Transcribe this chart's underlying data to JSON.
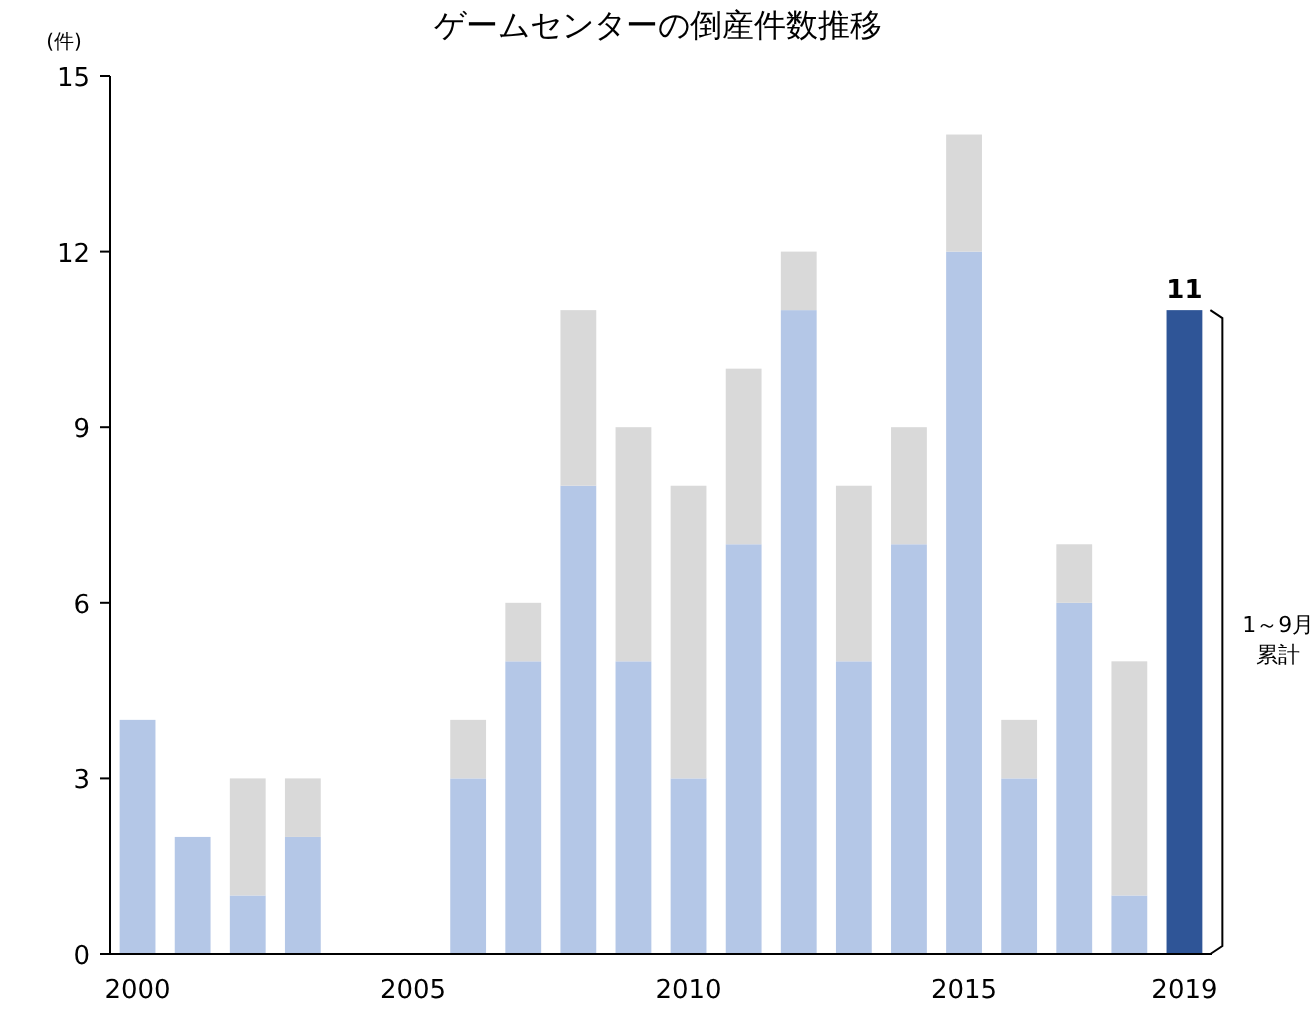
{
  "chart_data": {
    "type": "bar",
    "title": "ゲームセンターの倒産件数推移",
    "ylabel": "(件)",
    "stacked": true,
    "categories": [
      "2000",
      null,
      null,
      null,
      null,
      "2005",
      null,
      null,
      null,
      null,
      "2010",
      null,
      null,
      null,
      null,
      "2015",
      null,
      null,
      null,
      "2019"
    ],
    "series": [
      {
        "colors": [
          "#b4c7e7",
          "#b4c7e7",
          "#b4c7e7",
          "#b4c7e7",
          "#b4c7e7",
          "#b4c7e7",
          "#b4c7e7",
          "#b4c7e7",
          "#b4c7e7",
          "#b4c7e7",
          "#b4c7e7",
          "#b4c7e7",
          "#b4c7e7",
          "#b4c7e7",
          "#b4c7e7",
          "#b4c7e7",
          "#b4c7e7",
          "#b4c7e7",
          "#b4c7e7",
          "#2f5597"
        ],
        "values": [
          4,
          2,
          1,
          2,
          0,
          0,
          3,
          5,
          8,
          5,
          3,
          7,
          11,
          5,
          7,
          12,
          3,
          6,
          1,
          11
        ],
        "value_labels": [
          null,
          null,
          null,
          null,
          null,
          null,
          null,
          null,
          null,
          null,
          null,
          null,
          null,
          null,
          null,
          null,
          null,
          null,
          null,
          "11"
        ]
      },
      {
        "color": "#d9d9d9",
        "values": [
          0,
          0,
          2,
          1,
          0,
          0,
          1,
          1,
          3,
          4,
          5,
          3,
          1,
          3,
          2,
          2,
          1,
          1,
          4,
          null
        ]
      }
    ],
    "ylim": [
      0,
      15
    ],
    "yticks": [
      0,
      3,
      6,
      9,
      12,
      15
    ],
    "grid": false,
    "annotations": [
      "1～9月",
      "累計"
    ]
  }
}
